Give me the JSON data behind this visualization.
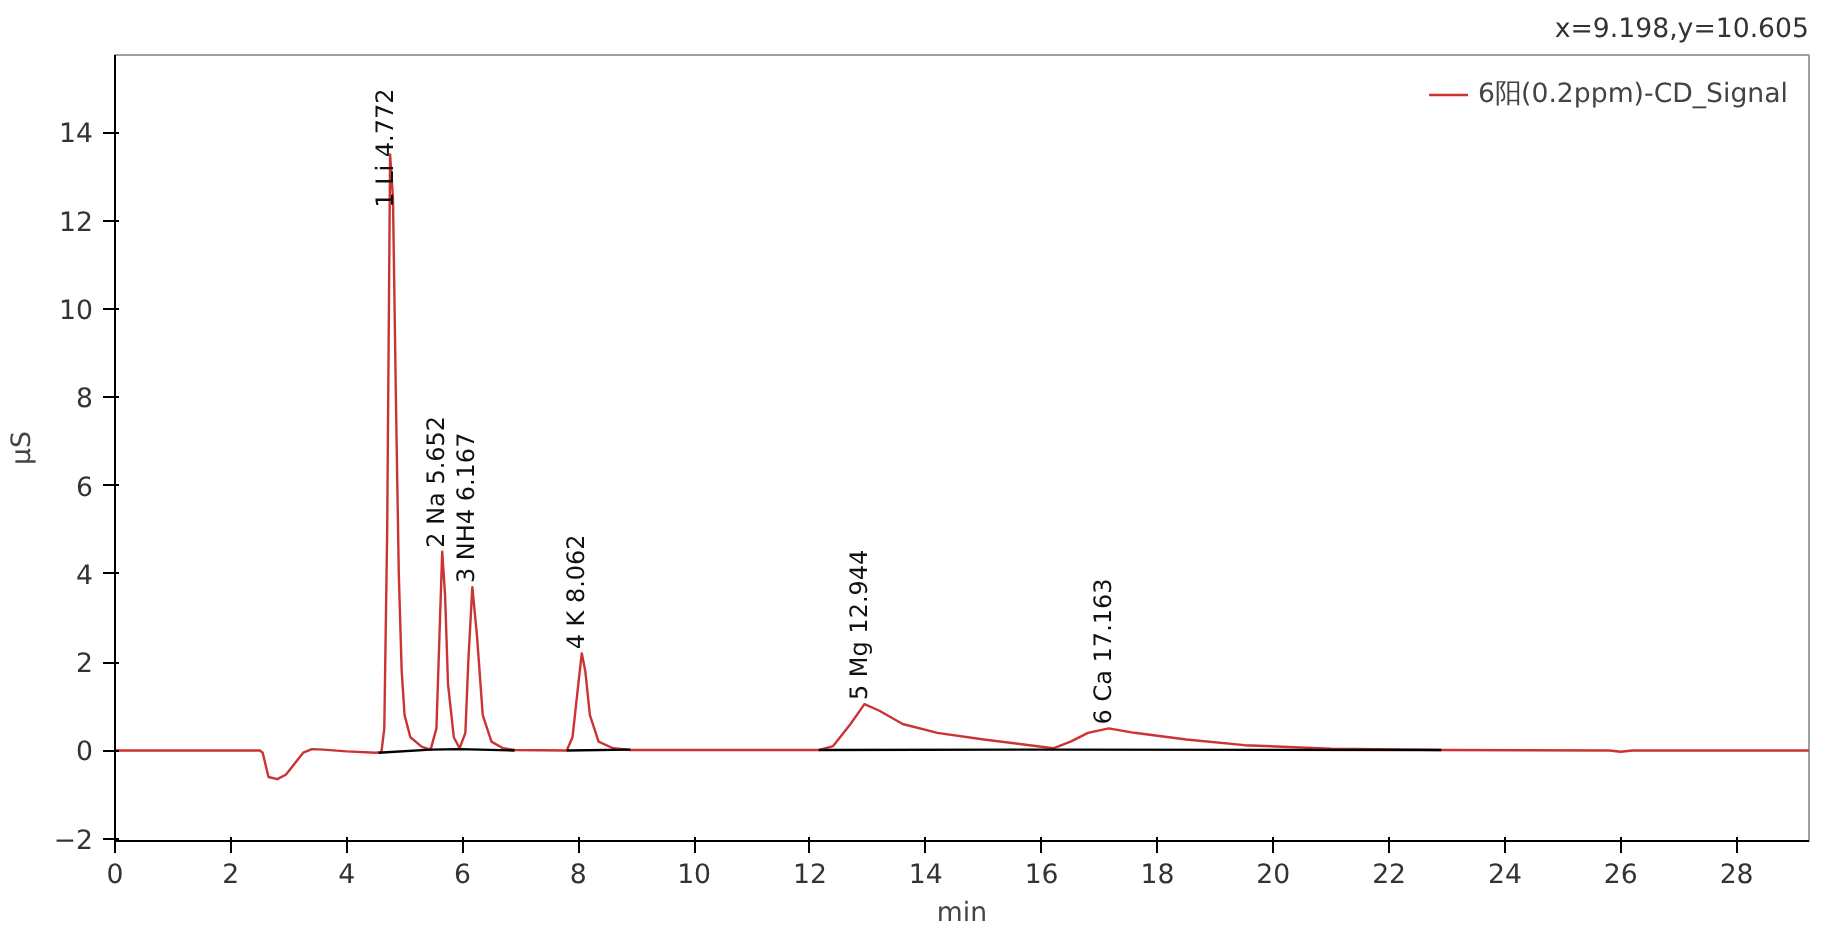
{
  "chart_data": {
    "type": "line",
    "xlabel": "min",
    "ylabel": "µS",
    "xlim": [
      0,
      29.25
    ],
    "ylim": [
      -2.05,
      15.75
    ],
    "xticks": [
      0,
      2,
      4,
      6,
      8,
      10,
      12,
      14,
      16,
      18,
      20,
      22,
      24,
      26,
      28
    ],
    "yticks": [
      -2,
      0,
      2,
      4,
      6,
      8,
      10,
      12,
      14
    ],
    "grid": false,
    "legend": "top right",
    "marker": "none",
    "line_style": "solid",
    "series": [
      {
        "name": "6阳(0.2ppm)-CD_Signal",
        "color": "#cc3333",
        "x": [
          0,
          2.5,
          2.55,
          2.65,
          2.8,
          2.95,
          3.1,
          3.25,
          3.4,
          3.6,
          4.0,
          4.5,
          4.6,
          4.65,
          4.7,
          4.75,
          4.8,
          4.85,
          4.9,
          4.95,
          5.0,
          5.1,
          5.3,
          5.45,
          5.55,
          5.6,
          5.65,
          5.7,
          5.75,
          5.85,
          5.95,
          6.05,
          6.1,
          6.17,
          6.25,
          6.35,
          6.5,
          6.7,
          6.9,
          7.8,
          7.9,
          8.0,
          8.06,
          8.12,
          8.2,
          8.35,
          8.6,
          8.9,
          12.15,
          12.4,
          12.7,
          12.94,
          13.2,
          13.6,
          14.2,
          15,
          16.2,
          16.5,
          16.8,
          17.16,
          17.6,
          18.5,
          19.5,
          21,
          22.9,
          25.8,
          26,
          26.2,
          29.25
        ],
        "values": [
          0,
          0,
          -0.05,
          -0.6,
          -0.65,
          -0.55,
          -0.3,
          -0.05,
          0.03,
          0.02,
          -0.02,
          -0.05,
          -0.04,
          0.5,
          5,
          13.5,
          12.5,
          8,
          4,
          1.8,
          0.8,
          0.3,
          0.08,
          0.02,
          0.5,
          2.5,
          4.5,
          3.5,
          1.5,
          0.3,
          0.05,
          0.4,
          2,
          3.7,
          2.6,
          0.8,
          0.2,
          0.05,
          0.01,
          0,
          0.3,
          1.5,
          2.2,
          1.8,
          0.8,
          0.2,
          0.05,
          0.01,
          0.01,
          0.1,
          0.6,
          1.05,
          0.9,
          0.6,
          0.4,
          0.25,
          0.05,
          0.2,
          0.4,
          0.5,
          0.4,
          0.25,
          0.12,
          0.04,
          0.01,
          0,
          -0.03,
          0,
          0
        ]
      },
      {
        "color": "#000000",
        "x": [
          4.55,
          5.45,
          5.95,
          6.9,
          6.95,
          7.8,
          8.9,
          8.95,
          12.15,
          16.2,
          22.9
        ],
        "values": [
          -0.05,
          0.02,
          0.03,
          0.0,
          null,
          0.0,
          0.02,
          null,
          0.01,
          0.02,
          0.01
        ]
      }
    ],
    "annotations": [
      "x=9.198,y=10.605",
      {
        "text": "1 Li 4.772",
        "x": 4.772,
        "y": 12.2
      },
      {
        "text": "2 Na 5.652",
        "x": 5.652,
        "y": 4.5
      },
      {
        "text": "3 NH4 6.167",
        "x": 6.167,
        "y": 3.7
      },
      {
        "text": "4 K 8.062",
        "x": 8.062,
        "y": 2.2
      },
      {
        "text": "5 Mg 12.944",
        "x": 12.944,
        "y": 1.05
      },
      {
        "text": "6 Ca 17.163",
        "x": 17.163,
        "y": 0.5
      }
    ]
  }
}
